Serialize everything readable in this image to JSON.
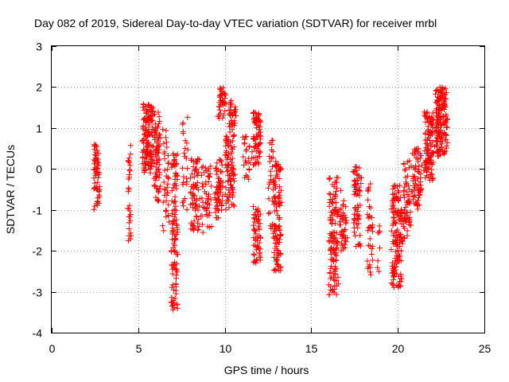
{
  "chart_data": {
    "type": "scatter",
    "title": "Day 082 of 2019, Sidereal Day-to-day VTEC variation (SDTVAR) for receiver mrbl",
    "xlabel": "GPS time / hours",
    "ylabel": "SDTVAR / TECUs",
    "xlim": [
      0,
      25
    ],
    "ylim": [
      -4,
      3
    ],
    "xticks": [
      "0",
      "5",
      "10",
      "15",
      "20",
      "25"
    ],
    "yticks": [
      "-4",
      "-3",
      "-2",
      "-1",
      "0",
      "1",
      "2",
      "3"
    ],
    "grid": true,
    "marker": "+",
    "color": "#ff0000",
    "clusters": [
      {
        "x": [
          2.4,
          2.8
        ],
        "y": [
          -1.1,
          0.65
        ],
        "n": 60
      },
      {
        "x": [
          4.4,
          4.6
        ],
        "y": [
          -1.8,
          0.7
        ],
        "n": 30
      },
      {
        "x": [
          5.2,
          5.9
        ],
        "y": [
          -0.1,
          1.6
        ],
        "n": 140
      },
      {
        "x": [
          5.9,
          6.3
        ],
        "y": [
          -0.8,
          1.4
        ],
        "n": 70
      },
      {
        "x": [
          6.4,
          6.8
        ],
        "y": [
          -1.7,
          1.0
        ],
        "n": 40
      },
      {
        "x": [
          6.9,
          7.3
        ],
        "y": [
          -3.5,
          0.4
        ],
        "n": 110
      },
      {
        "x": [
          7.5,
          7.9
        ],
        "y": [
          -1.0,
          1.3
        ],
        "n": 25
      },
      {
        "x": [
          8.0,
          8.6
        ],
        "y": [
          -1.5,
          0.3
        ],
        "n": 70
      },
      {
        "x": [
          8.6,
          9.3
        ],
        "y": [
          -1.6,
          0.1
        ],
        "n": 50
      },
      {
        "x": [
          9.4,
          9.9
        ],
        "y": [
          -1.2,
          0.3
        ],
        "n": 60
      },
      {
        "x": [
          9.6,
          10.1
        ],
        "y": [
          1.2,
          2.0
        ],
        "n": 40
      },
      {
        "x": [
          10.0,
          10.6
        ],
        "y": [
          -1.0,
          0.8
        ],
        "n": 90
      },
      {
        "x": [
          10.2,
          10.7
        ],
        "y": [
          0.8,
          1.7
        ],
        "n": 35
      },
      {
        "x": [
          11.0,
          11.6
        ],
        "y": [
          -0.4,
          0.8
        ],
        "n": 25
      },
      {
        "x": [
          11.6,
          12.1
        ],
        "y": [
          0.1,
          1.4
        ],
        "n": 70
      },
      {
        "x": [
          11.6,
          12.1
        ],
        "y": [
          -2.3,
          -0.9
        ],
        "n": 60
      },
      {
        "x": [
          12.5,
          12.9
        ],
        "y": [
          -1.6,
          0.8
        ],
        "n": 30
      },
      {
        "x": [
          12.8,
          13.3
        ],
        "y": [
          -2.5,
          0.2
        ],
        "n": 110
      },
      {
        "x": [
          16.0,
          16.6
        ],
        "y": [
          -3.1,
          -0.2
        ],
        "n": 130
      },
      {
        "x": [
          16.6,
          17.1
        ],
        "y": [
          -2.0,
          -0.5
        ],
        "n": 45
      },
      {
        "x": [
          17.4,
          17.9
        ],
        "y": [
          -1.9,
          0.1
        ],
        "n": 70
      },
      {
        "x": [
          18.2,
          18.6
        ],
        "y": [
          -2.6,
          -0.3
        ],
        "n": 35
      },
      {
        "x": [
          18.8,
          19.0
        ],
        "y": [
          -2.7,
          -1.3
        ],
        "n": 8
      },
      {
        "x": [
          19.6,
          20.3
        ],
        "y": [
          -2.9,
          -0.4
        ],
        "n": 150
      },
      {
        "x": [
          20.3,
          20.8
        ],
        "y": [
          -1.7,
          0.2
        ],
        "n": 60
      },
      {
        "x": [
          20.8,
          21.4
        ],
        "y": [
          -1.0,
          0.5
        ],
        "n": 70
      },
      {
        "x": [
          21.5,
          22.1
        ],
        "y": [
          -0.3,
          1.4
        ],
        "n": 110
      },
      {
        "x": [
          22.1,
          22.9
        ],
        "y": [
          0.3,
          2.0
        ],
        "n": 160
      }
    ]
  }
}
